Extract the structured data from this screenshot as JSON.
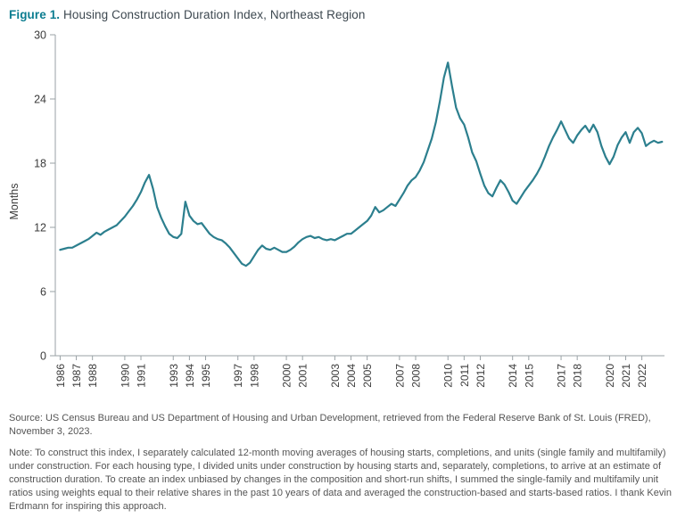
{
  "header": {
    "figure_label": "Figure 1.",
    "title": " Housing Construction Duration Index, Northeast Region"
  },
  "footer": {
    "source": "Source: US Census Bureau and US Department of Housing and Urban Development, retrieved from the Federal Reserve Bank of St. Louis (FRED), November 3, 2023.",
    "note": "Note: To construct this index, I separately calculated 12-month moving averages of housing starts, completions, and units (single family and multifamily) under construction. For each housing type, I divided units under construction by housing starts and, separately, completions, to arrive at an estimate of construction duration. To create an index unbiased by changes in the composition and short-run shifts, I summed the single-family and multifamily unit ratios using weights equal to their relative shares in the past 10 years of data and averaged the construction-based and starts-based ratios. I thank Kevin Erdmann for inspiring this approach."
  },
  "colors": {
    "accent": "#0c7d90",
    "line": "#2c7f8e",
    "axis": "#9aa2a6",
    "tick_text": "#3b3b3b"
  },
  "chart_data": {
    "type": "line",
    "title": "Housing Construction Duration Index, Northeast Region",
    "ylabel": "Months",
    "xlabel": "",
    "ylim": [
      0,
      30
    ],
    "yticks": [
      0,
      6,
      12,
      18,
      24,
      30
    ],
    "xlim": [
      1985.7,
      2023.4
    ],
    "xtick_labels": [
      "1986",
      "1987",
      "1988",
      "1990",
      "1991",
      "1993",
      "1994",
      "1995",
      "1997",
      "1998",
      "2000",
      "2001",
      "2003",
      "2004",
      "2005",
      "2007",
      "2008",
      "2010",
      "2011",
      "2012",
      "2014",
      "2015",
      "2017",
      "2018",
      "2020",
      "2021",
      "2022"
    ],
    "grid": false,
    "legend_position": "none",
    "series": [
      {
        "name": "Housing construction duration index (months)",
        "x_start": 1986.0,
        "x_step": 0.25,
        "values": [
          9.9,
          10.0,
          10.1,
          10.1,
          10.3,
          10.5,
          10.7,
          10.9,
          11.2,
          11.5,
          11.3,
          11.6,
          11.8,
          12.0,
          12.2,
          12.6,
          13.0,
          13.5,
          14.0,
          14.6,
          15.3,
          16.2,
          16.9,
          15.6,
          13.9,
          12.9,
          12.1,
          11.4,
          11.1,
          11.0,
          11.4,
          14.4,
          13.1,
          12.6,
          12.3,
          12.4,
          11.9,
          11.4,
          11.1,
          10.9,
          10.8,
          10.5,
          10.1,
          9.6,
          9.1,
          8.6,
          8.4,
          8.7,
          9.3,
          9.9,
          10.3,
          10.0,
          9.9,
          10.1,
          9.9,
          9.7,
          9.7,
          9.9,
          10.2,
          10.6,
          10.9,
          11.1,
          11.2,
          11.0,
          11.1,
          10.9,
          10.8,
          10.9,
          10.8,
          11.0,
          11.2,
          11.4,
          11.4,
          11.7,
          12.0,
          12.3,
          12.6,
          13.1,
          13.9,
          13.4,
          13.6,
          13.9,
          14.2,
          14.0,
          14.6,
          15.2,
          15.9,
          16.4,
          16.7,
          17.3,
          18.1,
          19.2,
          20.3,
          21.8,
          23.8,
          26.0,
          27.4,
          25.2,
          23.2,
          22.2,
          21.6,
          20.4,
          19.0,
          18.2,
          17.0,
          15.9,
          15.2,
          14.9,
          15.7,
          16.4,
          16.0,
          15.3,
          14.5,
          14.2,
          14.8,
          15.4,
          15.9,
          16.4,
          17.0,
          17.7,
          18.6,
          19.6,
          20.4,
          21.1,
          21.9,
          21.1,
          20.3,
          19.9,
          20.6,
          21.1,
          21.5,
          20.9,
          21.6,
          20.9,
          19.6,
          18.6,
          17.9,
          18.6,
          19.7,
          20.4,
          20.9,
          19.9,
          20.9,
          21.3,
          20.8,
          19.6,
          19.9,
          20.1,
          19.9,
          20.0
        ]
      }
    ]
  }
}
